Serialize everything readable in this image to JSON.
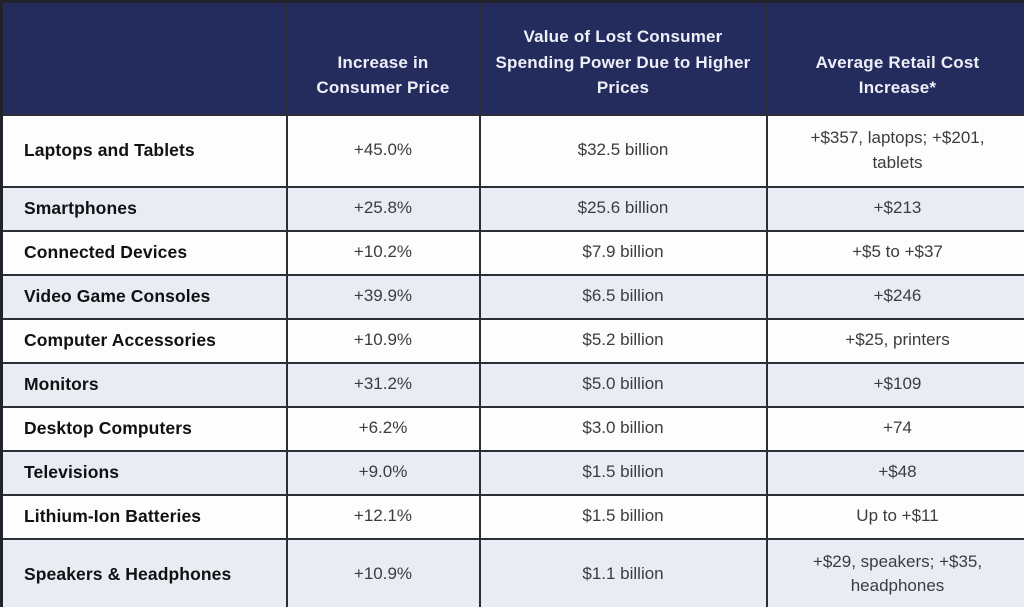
{
  "colors": {
    "header_background": "#242b5d",
    "header_text": "#edf0f9",
    "row_white": "#fdfdfd",
    "row_shaded": "#e9edf3",
    "border": "#2d2d35",
    "body_text": "#3c3c40",
    "category_text": "#111114"
  },
  "table": {
    "columns": {
      "category": "",
      "price_increase": "Increase in Consumer Price",
      "lost_spending": "Value of Lost Consumer Spending Power Due to Higher Prices",
      "retail_increase": "Average Retail Cost Increase*"
    },
    "rows": [
      {
        "category": "Laptops and Tablets",
        "price_increase": "+45.0%",
        "lost_spending": "$32.5 billion",
        "retail_increase": "+$357, laptops; +$201, tablets"
      },
      {
        "category": "Smartphones",
        "price_increase": "+25.8%",
        "lost_spending": "$25.6 billion",
        "retail_increase": "+$213"
      },
      {
        "category": "Connected Devices",
        "price_increase": "+10.2%",
        "lost_spending": "$7.9 billion",
        "retail_increase": "+$5 to +$37"
      },
      {
        "category": "Video Game Consoles",
        "price_increase": "+39.9%",
        "lost_spending": "$6.5 billion",
        "retail_increase": "+$246"
      },
      {
        "category": "Computer Accessories",
        "price_increase": "+10.9%",
        "lost_spending": "$5.2 billion",
        "retail_increase": "+$25, printers"
      },
      {
        "category": "Monitors",
        "price_increase": "+31.2%",
        "lost_spending": "$5.0 billion",
        "retail_increase": "+$109"
      },
      {
        "category": "Desktop Computers",
        "price_increase": "+6.2%",
        "lost_spending": "$3.0 billion",
        "retail_increase": "+74"
      },
      {
        "category": "Televisions",
        "price_increase": "+9.0%",
        "lost_spending": "$1.5 billion",
        "retail_increase": "+$48"
      },
      {
        "category": "Lithium-Ion Batteries",
        "price_increase": "+12.1%",
        "lost_spending": "$1.5 billion",
        "retail_increase": "Up to +$11"
      },
      {
        "category": "Speakers & Headphones",
        "price_increase": "+10.9%",
        "lost_spending": "$1.1 billion",
        "retail_increase": "+$29, speakers; +$35, headphones"
      }
    ]
  },
  "chart_data": {
    "type": "table",
    "columns": [
      "",
      "Increase in Consumer Price",
      "Value of Lost Consumer Spending Power Due to Higher Prices",
      "Average Retail Cost Increase*"
    ],
    "rows": [
      [
        "Laptops and Tablets",
        "+45.0%",
        "$32.5 billion",
        "+$357, laptops; +$201, tablets"
      ],
      [
        "Smartphones",
        "+25.8%",
        "$25.6 billion",
        "+$213"
      ],
      [
        "Connected Devices",
        "+10.2%",
        "$7.9 billion",
        "+$5 to +$37"
      ],
      [
        "Video Game Consoles",
        "+39.9%",
        "$6.5 billion",
        "+$246"
      ],
      [
        "Computer Accessories",
        "+10.9%",
        "$5.2 billion",
        "+$25, printers"
      ],
      [
        "Monitors",
        "+31.2%",
        "$5.0 billion",
        "+$109"
      ],
      [
        "Desktop Computers",
        "+6.2%",
        "$3.0 billion",
        "+74"
      ],
      [
        "Televisions",
        "+9.0%",
        "$1.5 billion",
        "+$48"
      ],
      [
        "Lithium-Ion Batteries",
        "+12.1%",
        "$1.5 billion",
        "Up to +$11"
      ],
      [
        "Speakers & Headphones",
        "+10.9%",
        "$1.1 billion",
        "+$29, speakers; +$35, headphones"
      ]
    ]
  }
}
